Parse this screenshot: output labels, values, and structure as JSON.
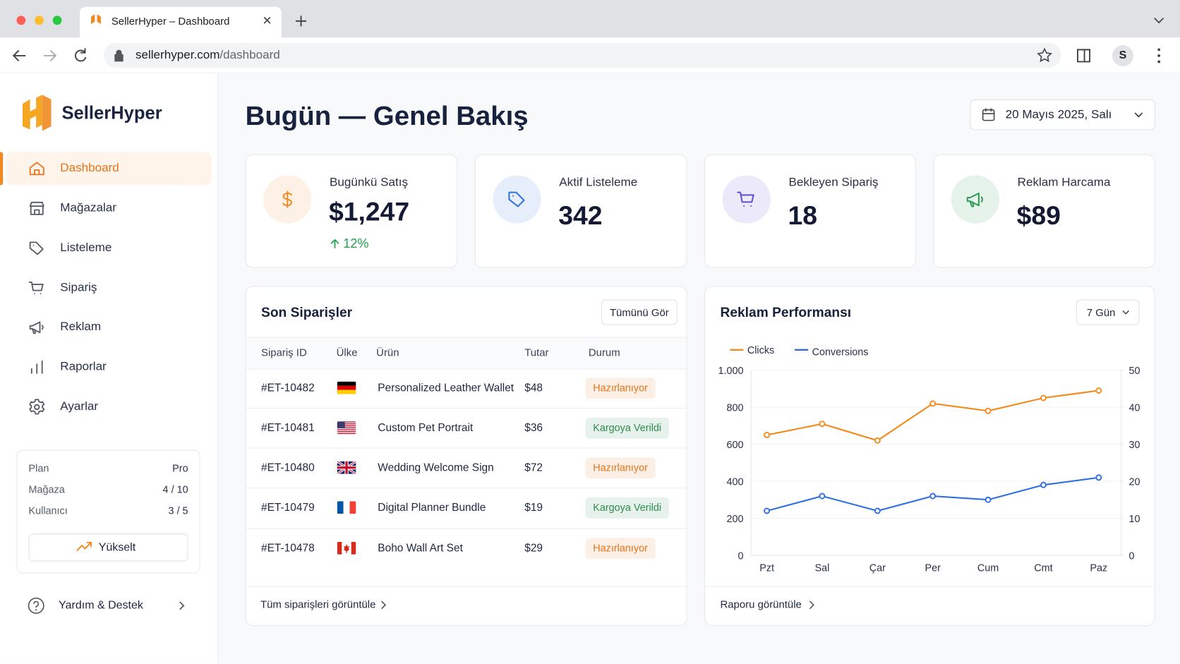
{
  "browser": {
    "tab_title": "SellerHyper – Dashboard",
    "url_host": "sellerhyper.com",
    "url_path": "/dashboard",
    "profile": "S"
  },
  "sidebar": {
    "brand": "SellerHyper",
    "nav": [
      "Dashboard",
      "Mağazalar",
      "Listeleme",
      "Sipariş",
      "Reklam",
      "Raporlar",
      "Ayarlar"
    ],
    "plan": {
      "rows": [
        [
          "Plan",
          "Pro"
        ],
        [
          "Mağaza",
          "4 / 10"
        ],
        [
          "Kullanıcı",
          "3 / 5"
        ]
      ],
      "button": "Yükselt"
    },
    "help": "Yardım & Destek"
  },
  "header": {
    "title": "Bugün — Genel Bakış",
    "date": "20 Mayıs 2025, Salı"
  },
  "stats": [
    {
      "label": "Bugünkü Satış",
      "value": "$1,247",
      "change": "12%",
      "color": "#f08a24"
    },
    {
      "label": "Aktif Listeleme",
      "value": "342",
      "color": "#2f6fe0"
    },
    {
      "label": "Bekleyen Sipariş",
      "value": "18",
      "color": "#5b4bd6"
    },
    {
      "label": "Reklam Harcama",
      "value": "$89",
      "color": "#2e9a55"
    }
  ],
  "orders": {
    "title": "Son Siparişler",
    "button": "Tümünü Gör",
    "columns": [
      "Sipariş ID",
      "Ülke",
      "Ürün",
      "Tutar",
      "Durum"
    ],
    "rows": [
      {
        "id": "#ET-10482",
        "product": "Personalized Leather Wallet",
        "amount": "$48",
        "status": "Hazırlanıyor",
        "status_color": "#e8731a"
      },
      {
        "id": "#ET-10481",
        "product": "Custom Pet Portrait",
        "amount": "$36",
        "status": "Kargoya Verildi",
        "status_color": "#2e8b4e"
      },
      {
        "id": "#ET-10480",
        "product": "Wedding Welcome Sign",
        "amount": "$72",
        "status": "Hazırlanıyor",
        "status_color": "#e8731a"
      },
      {
        "id": "#ET-10479",
        "product": "Digital Planner Bundle",
        "amount": "$19",
        "status": "Kargoya Verildi",
        "status_color": "#2e8b4e"
      },
      {
        "id": "#ET-10478",
        "product": "Boho Wall Art Set",
        "amount": "$29",
        "status": "Hazırlanıyor",
        "status_color": "#e8731a"
      }
    ],
    "footer": "Tüm siparişleri görüntüle"
  },
  "chart_data": {
    "type": "line",
    "title": "Reklam Performansı",
    "range": "7 Gün",
    "footer": "Raporu görüntüle",
    "categories": [
      "Pzt",
      "Sal",
      "Çar",
      "Per",
      "Cum",
      "Cmt",
      "Paz"
    ],
    "series": [
      {
        "name": "Clicks",
        "color": "#f28c1e",
        "values": [
          650,
          710,
          620,
          820,
          780,
          850,
          890
        ]
      },
      {
        "name": "Conversions",
        "color": "#2f6fe0",
        "axis": "y2",
        "values": [
          12,
          16,
          12,
          16,
          15,
          19,
          21
        ]
      }
    ],
    "ylim": [
      0,
      1000
    ],
    "yticks": [
      0,
      200,
      400,
      600,
      800,
      {
        "value": 1000,
        "label": "1.000"
      }
    ],
    "y2lim": [
      0,
      50
    ],
    "y2ticks": [
      0,
      10,
      20,
      30,
      40,
      50
    ],
    "grid": true
  }
}
